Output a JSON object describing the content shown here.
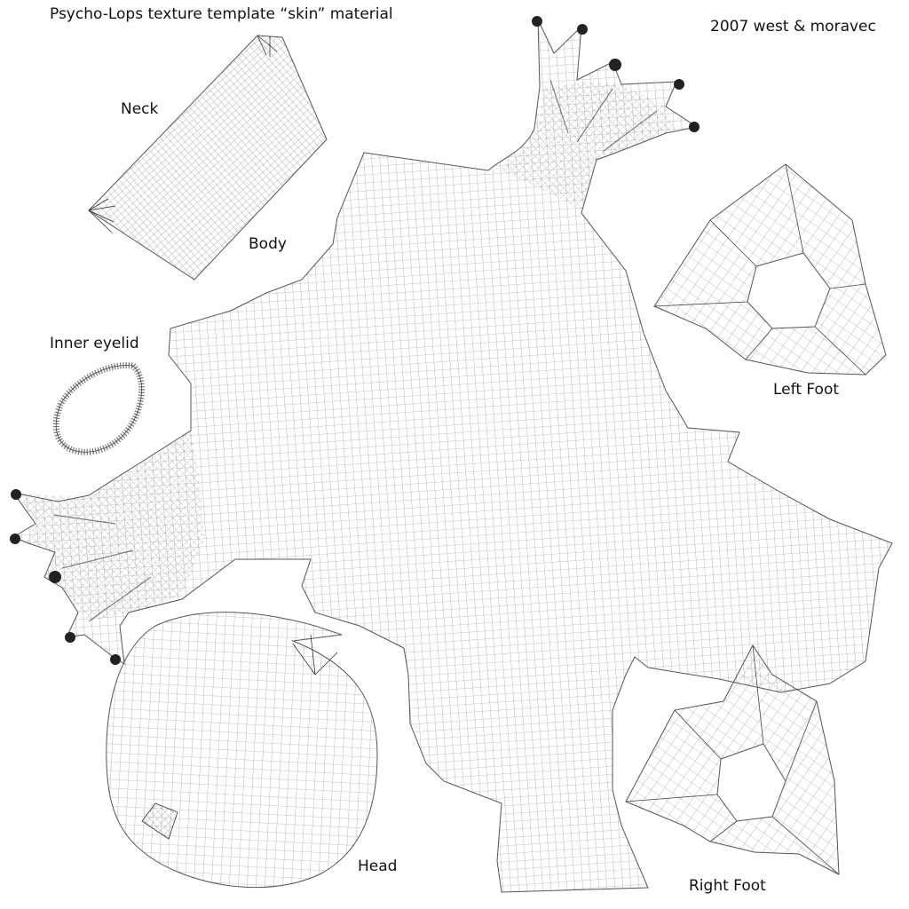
{
  "title": "Psycho-Lops texture template “skin” material",
  "credit": "2007 west & moravec",
  "labels": {
    "neck": "Neck",
    "body": "Body",
    "inner_eyelid": "Inner eyelid",
    "left_foot": "Left Foot",
    "head": "Head",
    "right_foot": "Right Foot"
  },
  "colors": {
    "background": "#ffffff",
    "wire": "#7a7a7a",
    "wire_dense": "#333333",
    "text": "#111111"
  }
}
